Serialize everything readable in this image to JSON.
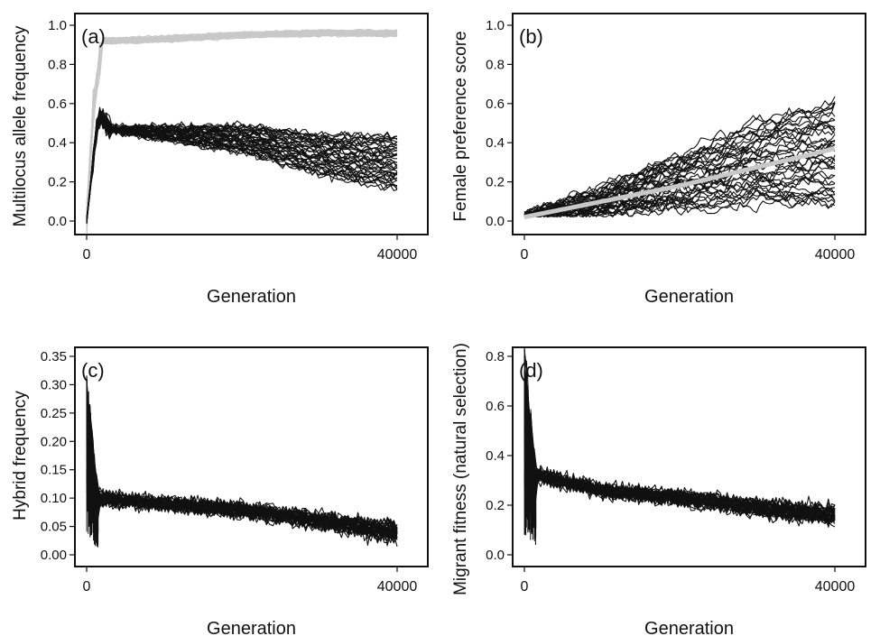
{
  "chart_data": [
    {
      "panel": "(a)",
      "type": "line",
      "ylabel": "Multilocus allele frequency",
      "xlabel": "Generation",
      "xlim": [
        0,
        40000
      ],
      "ylim": [
        0.0,
        1.0
      ],
      "xticks": [
        "0",
        "40000"
      ],
      "yticks": [
        "0.0",
        "0.2",
        "0.4",
        "0.6",
        "0.8",
        "1.0"
      ],
      "grid": false,
      "series_groups": [
        {
          "color": "#c8c8c8",
          "replicates": 30,
          "shape": "rise-plateau",
          "mean": [
            [
              0,
              0.0
            ],
            [
              800,
              0.55
            ],
            [
              2000,
              0.92
            ],
            [
              10000,
              0.93
            ],
            [
              20000,
              0.95
            ],
            [
              30000,
              0.96
            ],
            [
              40000,
              0.96
            ]
          ]
        },
        {
          "color": "#111111",
          "replicates": 40,
          "shape": "rise-decline",
          "mean": [
            [
              0,
              0.0
            ],
            [
              1500,
              0.55
            ],
            [
              3000,
              0.47
            ],
            [
              10000,
              0.45
            ],
            [
              20000,
              0.42
            ],
            [
              30000,
              0.34
            ],
            [
              40000,
              0.3
            ]
          ]
        }
      ]
    },
    {
      "panel": "(b)",
      "type": "line",
      "ylabel": "Female preference score",
      "xlabel": "Generation",
      "xlim": [
        0,
        40000
      ],
      "ylim": [
        0.0,
        1.0
      ],
      "xticks": [
        "0",
        "40000"
      ],
      "yticks": [
        "0.0",
        "0.2",
        "0.4",
        "0.6",
        "0.8",
        "1.0"
      ],
      "grid": false,
      "series_groups": [
        {
          "color": "#111111",
          "replicates": 40,
          "shape": "increasing",
          "mean": [
            [
              0,
              0.02
            ],
            [
              10000,
              0.1
            ],
            [
              20000,
              0.2
            ],
            [
              30000,
              0.3
            ],
            [
              40000,
              0.35
            ]
          ]
        },
        {
          "color": "#c8c8c8",
          "replicates": 1,
          "shape": "mean-line",
          "mean": [
            [
              0,
              0.02
            ],
            [
              20000,
              0.18
            ],
            [
              40000,
              0.37
            ]
          ]
        }
      ]
    },
    {
      "panel": "(c)",
      "type": "line",
      "ylabel": "Hybrid frequency",
      "xlabel": "Generation",
      "xlim": [
        0,
        40000
      ],
      "ylim": [
        0.0,
        0.35
      ],
      "xticks": [
        "0",
        "40000"
      ],
      "yticks": [
        "0.00",
        "0.05",
        "0.10",
        "0.15",
        "0.20",
        "0.25",
        "0.30",
        "0.35"
      ],
      "grid": false,
      "series_groups": [
        {
          "color": "#111111",
          "replicates": 40,
          "shape": "spike-decay",
          "mean": [
            [
              0,
              0.3
            ],
            [
              1500,
              0.1
            ],
            [
              10000,
              0.09
            ],
            [
              20000,
              0.08
            ],
            [
              30000,
              0.06
            ],
            [
              40000,
              0.04
            ]
          ]
        }
      ]
    },
    {
      "panel": "(d)",
      "type": "line",
      "ylabel": "Migrant fitness (natural selection)",
      "xlabel": "Generation",
      "xlim": [
        0,
        40000
      ],
      "ylim": [
        0.0,
        0.8
      ],
      "xticks": [
        "0",
        "40000"
      ],
      "yticks": [
        "0.0",
        "0.2",
        "0.4",
        "0.6",
        "0.8"
      ],
      "grid": false,
      "series_groups": [
        {
          "color": "#111111",
          "replicates": 40,
          "shape": "spike-decay",
          "mean": [
            [
              0,
              0.8
            ],
            [
              1500,
              0.32
            ],
            [
              10000,
              0.26
            ],
            [
              20000,
              0.23
            ],
            [
              30000,
              0.19
            ],
            [
              40000,
              0.16
            ]
          ]
        }
      ]
    }
  ]
}
